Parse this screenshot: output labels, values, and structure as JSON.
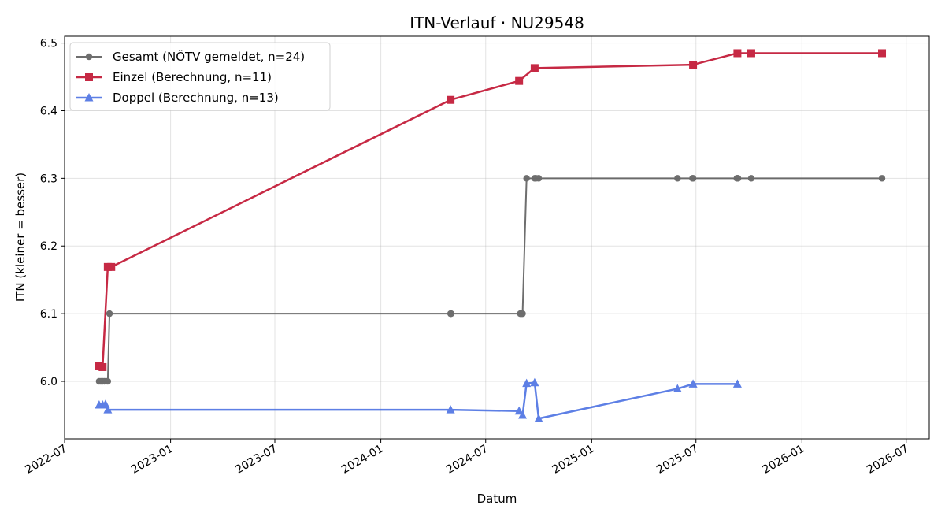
{
  "chart_data": {
    "type": "line",
    "title": "ITN-Verlauf · NU29548",
    "xlabel": "Datum",
    "ylabel": "ITN  (kleiner = besser)",
    "x_is_date": true,
    "xlim": [
      "2022-07-01",
      "2026-08-10"
    ],
    "ylim": [
      5.915,
      6.51
    ],
    "x_ticks": [
      "2022-07-01",
      "2023-01-01",
      "2023-07-01",
      "2024-01-01",
      "2024-07-01",
      "2025-01-01",
      "2025-07-01",
      "2026-01-01",
      "2026-07-01"
    ],
    "x_tick_labels": [
      "2022-07",
      "2023-01",
      "2023-07",
      "2024-01",
      "2024-07",
      "2025-01",
      "2025-07",
      "2026-01",
      "2026-07"
    ],
    "y_ticks": [
      6.0,
      6.1,
      6.2,
      6.3,
      6.4,
      6.5
    ],
    "y_tick_labels": [
      "6.0",
      "6.1",
      "6.2",
      "6.3",
      "6.4",
      "6.5"
    ],
    "grid": true,
    "legend_position": "top-left",
    "series": [
      {
        "name": "Gesamt (NÖTV gemeldet, n=24)",
        "color": "#555555",
        "marker": "circle",
        "points": [
          [
            "2022-08-30",
            6.0
          ],
          [
            "2022-09-02",
            6.0
          ],
          [
            "2022-09-05",
            6.0
          ],
          [
            "2022-09-08",
            6.0
          ],
          [
            "2022-09-11",
            6.0
          ],
          [
            "2022-09-14",
            6.0
          ],
          [
            "2022-09-17",
            6.1
          ],
          [
            "2024-05-01",
            6.1
          ],
          [
            "2024-05-02",
            6.1
          ],
          [
            "2024-08-30",
            6.1
          ],
          [
            "2024-09-01",
            6.1
          ],
          [
            "2024-09-03",
            6.1
          ],
          [
            "2024-09-10",
            6.3
          ],
          [
            "2024-09-24",
            6.3
          ],
          [
            "2024-09-26",
            6.3
          ],
          [
            "2024-10-01",
            6.3
          ],
          [
            "2025-05-30",
            6.3
          ],
          [
            "2025-06-25",
            6.3
          ],
          [
            "2025-06-26",
            6.3
          ],
          [
            "2025-09-10",
            6.3
          ],
          [
            "2025-09-11",
            6.3
          ],
          [
            "2025-09-12",
            6.3
          ],
          [
            "2025-10-05",
            6.3
          ],
          [
            "2026-05-20",
            6.3
          ]
        ]
      },
      {
        "name": "Einzel (Berechnung, n=11)",
        "color": "#c41e3a",
        "marker": "square",
        "points": [
          [
            "2022-08-30",
            6.023
          ],
          [
            "2022-09-05",
            6.021
          ],
          [
            "2022-09-14",
            6.169
          ],
          [
            "2022-09-20",
            6.169
          ],
          [
            "2024-05-01",
            6.416
          ],
          [
            "2024-08-28",
            6.444
          ],
          [
            "2024-09-24",
            6.463
          ],
          [
            "2025-06-26",
            6.468
          ],
          [
            "2025-09-11",
            6.485
          ],
          [
            "2025-10-05",
            6.485
          ],
          [
            "2026-05-20",
            6.485
          ]
        ]
      },
      {
        "name": "Doppel (Berechnung, n=13)",
        "color": "#4169e1",
        "marker": "triangle",
        "points": [
          [
            "2022-08-30",
            5.965
          ],
          [
            "2022-09-05",
            5.965
          ],
          [
            "2022-09-10",
            5.966
          ],
          [
            "2022-09-14",
            5.958
          ],
          [
            "2024-05-01",
            5.958
          ],
          [
            "2024-08-28",
            5.956
          ],
          [
            "2024-09-03",
            5.95
          ],
          [
            "2024-09-10",
            5.997
          ],
          [
            "2024-09-24",
            5.998
          ],
          [
            "2024-10-01",
            5.945
          ],
          [
            "2025-05-30",
            5.989
          ],
          [
            "2025-06-26",
            5.996
          ],
          [
            "2025-09-11",
            5.996
          ]
        ]
      }
    ]
  }
}
